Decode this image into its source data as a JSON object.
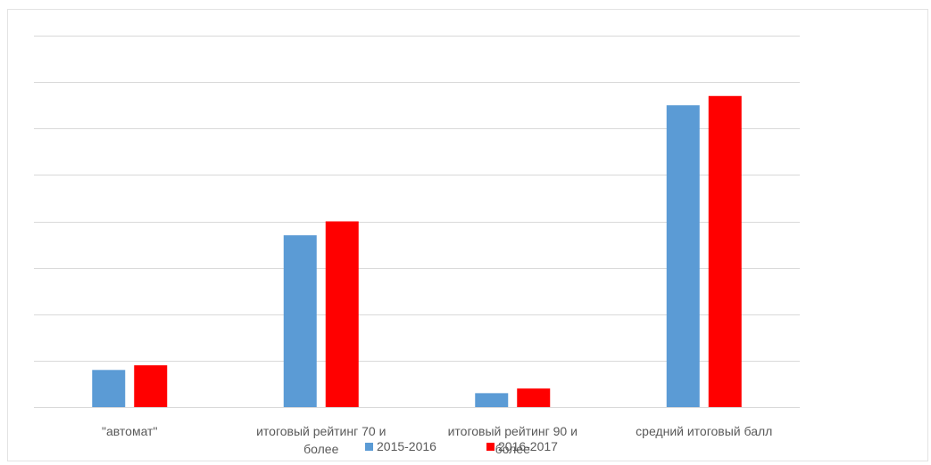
{
  "chart_data": {
    "type": "bar",
    "categories": [
      [
        "\"автомат\""
      ],
      [
        "итоговый рейтинг 70 и",
        "более"
      ],
      [
        "итоговый рейтинг 90 и",
        "более"
      ],
      [
        "средний итоговый балл"
      ]
    ],
    "series": [
      {
        "name": "2015-2016",
        "color": "#5b9bd5",
        "values": [
          0.8,
          3.7,
          0.3,
          6.5
        ]
      },
      {
        "name": "2016-2017",
        "color": "#ff0000",
        "values": [
          0.9,
          4.0,
          0.4,
          6.7
        ]
      }
    ],
    "ylim": [
      0,
      8
    ],
    "gridlines": 8,
    "grid": true,
    "y_tick_labels_shown": false,
    "legend": "bottom",
    "gridline_color": "#d9d9d9"
  }
}
